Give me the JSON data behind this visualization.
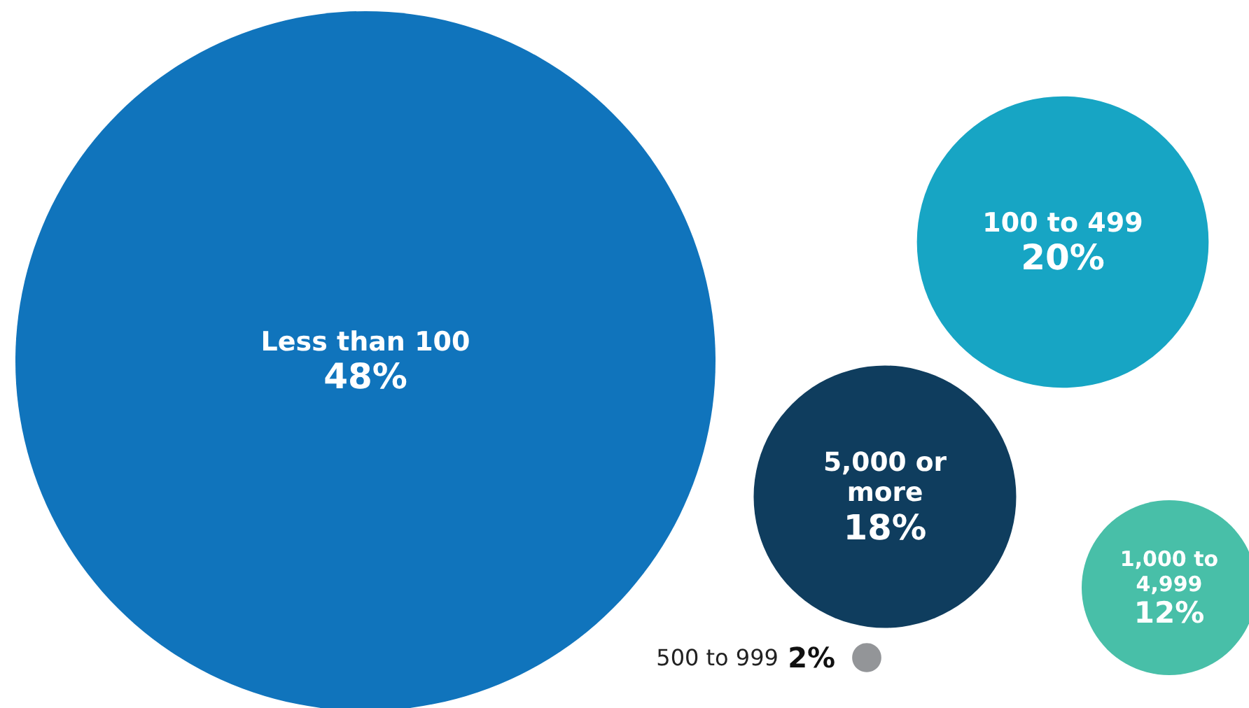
{
  "chart_data": {
    "type": "other",
    "categories": [
      "Less than 100",
      "100 to 499",
      "5,000 or more",
      "1,000 to 4,999",
      "500 to 999"
    ],
    "values": [
      48,
      20,
      18,
      12,
      2
    ],
    "value_labels": [
      "48%",
      "20%",
      "18%",
      "12%",
      "2%"
    ],
    "colors": [
      "#1074bc",
      "#17a5c4",
      "#0f3d5e",
      "#48bfa8",
      "#939598"
    ]
  }
}
